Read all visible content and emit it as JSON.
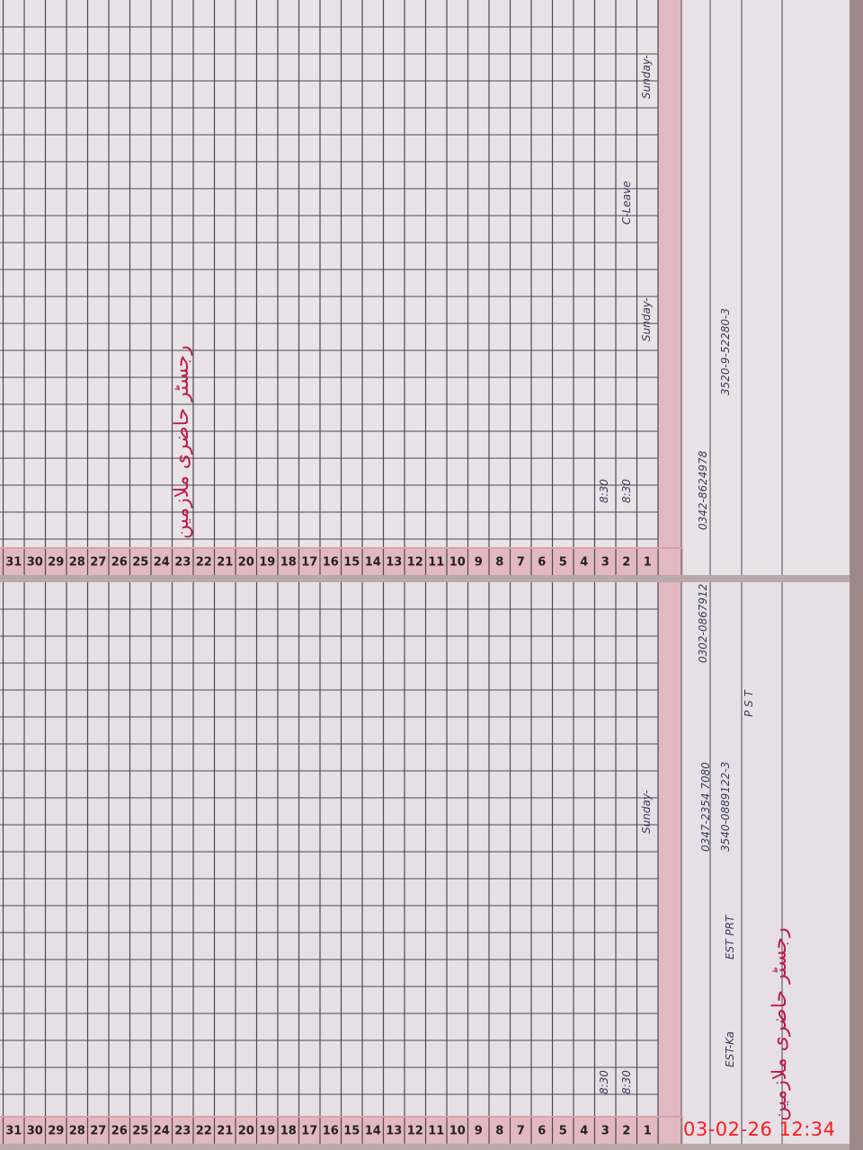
{
  "pages": [
    {
      "title": "رجسٹر حاضری ملازمین",
      "entries": [
        "3520-9-52280-3",
        "0342-8624978",
        "Sunday-",
        "Sunday-",
        "C-Leave",
        "8:30",
        "8:30"
      ],
      "rows": [
        1,
        2,
        3,
        4,
        5,
        6,
        7,
        8,
        9,
        10,
        11,
        12,
        13,
        14,
        15,
        16,
        17,
        18,
        19,
        20,
        21,
        22,
        23,
        24,
        25,
        26,
        27,
        28,
        29,
        30,
        31
      ]
    },
    {
      "title": "رجسٹر حاضری ملازمین",
      "entries": [
        "P S T",
        "3540-0889122-3",
        "0347-2354 7080",
        "0302-0867912",
        "EST PRT",
        "EST-Ka",
        "Sunday-",
        "8:30",
        "8:30"
      ],
      "rows": [
        1,
        2,
        3,
        4,
        5,
        6,
        7,
        8,
        9,
        10,
        11,
        12,
        13,
        14,
        15,
        16,
        17,
        18,
        19,
        20,
        21,
        22,
        23,
        24,
        25,
        26,
        27,
        28,
        29,
        30,
        31
      ]
    }
  ],
  "timestamp": "03-02-26 12:34",
  "colors": {
    "paper": "#e9e3e8",
    "pink_rule": "#d9a1ac",
    "grid": "#4a4a55",
    "header_ink": "#c01a45",
    "timestamp": "#ff1a1a"
  }
}
